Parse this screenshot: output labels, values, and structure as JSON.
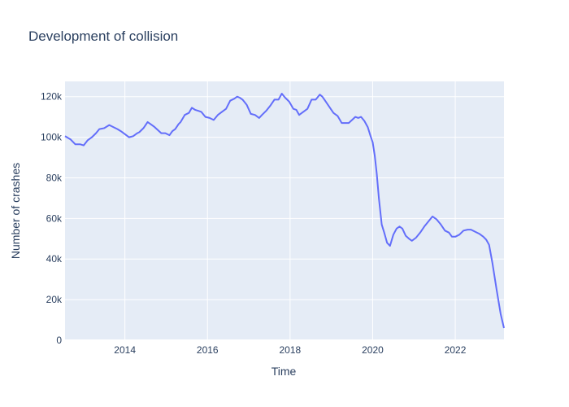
{
  "chart_data": {
    "type": "line",
    "title": "Development of collision",
    "xlabel": "Time",
    "ylabel": "Number of crashes",
    "xlim": [
      2012.55,
      2023.18
    ],
    "ylim": [
      0,
      127500
    ],
    "x_ticks": [
      {
        "value": 2014,
        "label": "2014"
      },
      {
        "value": 2016,
        "label": "2016"
      },
      {
        "value": 2018,
        "label": "2018"
      },
      {
        "value": 2020,
        "label": "2020"
      },
      {
        "value": 2022,
        "label": "2022"
      }
    ],
    "y_ticks": [
      {
        "value": 0,
        "label": "0"
      },
      {
        "value": 20000,
        "label": "20k"
      },
      {
        "value": 40000,
        "label": "40k"
      },
      {
        "value": 60000,
        "label": "60k"
      },
      {
        "value": 80000,
        "label": "80k"
      },
      {
        "value": 100000,
        "label": "100k"
      },
      {
        "value": 120000,
        "label": "120k"
      }
    ],
    "grid": true,
    "line_color": "#636efa",
    "plot_bg": "#e5ecf6",
    "series": [
      {
        "x": [
          2012.55,
          2012.68,
          2012.8,
          2012.92,
          2013.0,
          2013.1,
          2013.2,
          2013.3,
          2013.38,
          2013.5,
          2013.62,
          2013.72,
          2013.82,
          2013.9,
          2014.0,
          2014.1,
          2014.2,
          2014.3,
          2014.35,
          2014.45,
          2014.55,
          2014.62,
          2014.72,
          2014.8,
          2014.88,
          2014.98,
          2015.08,
          2015.15,
          2015.22,
          2015.3,
          2015.35,
          2015.45,
          2015.55,
          2015.62,
          2015.7,
          2015.78,
          2015.85,
          2015.95,
          2016.05,
          2016.15,
          2016.25,
          2016.35,
          2016.45,
          2016.55,
          2016.65,
          2016.72,
          2016.78,
          2016.85,
          2016.95,
          2017.05,
          2017.15,
          2017.25,
          2017.32,
          2017.42,
          2017.52,
          2017.62,
          2017.72,
          2017.8,
          2017.88,
          2017.98,
          2018.08,
          2018.15,
          2018.22,
          2018.32,
          2018.42,
          2018.52,
          2018.62,
          2018.72,
          2018.78,
          2018.85,
          2018.95,
          2019.05,
          2019.15,
          2019.25,
          2019.32,
          2019.42,
          2019.5,
          2019.58,
          2019.65,
          2019.72,
          2019.8,
          2019.88,
          2019.95,
          2020.0,
          2020.05,
          2020.1,
          2020.15,
          2020.22,
          2020.28,
          2020.35,
          2020.42,
          2020.5,
          2020.58,
          2020.65,
          2020.72,
          2020.8,
          2020.88,
          2020.95,
          2021.05,
          2021.15,
          2021.25,
          2021.35,
          2021.45,
          2021.55,
          2021.65,
          2021.75,
          2021.85,
          2021.92,
          2022.0,
          2022.1,
          2022.2,
          2022.3,
          2022.38,
          2022.48,
          2022.58,
          2022.68,
          2022.75,
          2022.82,
          2022.9,
          2023.0,
          2023.1,
          2023.18
        ],
        "y": [
          100500,
          99000,
          96500,
          96500,
          96000,
          98500,
          100000,
          102000,
          104000,
          104500,
          106000,
          105000,
          104000,
          103000,
          101500,
          100000,
          100500,
          102000,
          102500,
          104500,
          107500,
          106500,
          105000,
          103500,
          102000,
          102000,
          101000,
          103000,
          104000,
          106500,
          107500,
          111000,
          112000,
          114500,
          113500,
          113000,
          112500,
          110000,
          109500,
          108500,
          111000,
          112500,
          114000,
          118000,
          119000,
          120000,
          119500,
          118500,
          116000,
          111500,
          111000,
          109500,
          111000,
          113000,
          115500,
          118500,
          118500,
          121500,
          119500,
          117500,
          114000,
          113500,
          111000,
          112500,
          114000,
          118500,
          118500,
          121000,
          120000,
          118000,
          115000,
          112000,
          110500,
          107000,
          107000,
          107000,
          108500,
          110000,
          109500,
          110000,
          108000,
          105000,
          100500,
          97500,
          91000,
          82000,
          70000,
          57000,
          53000,
          48000,
          46500,
          52000,
          55000,
          56000,
          55000,
          51500,
          50000,
          49000,
          50500,
          53000,
          56000,
          58500,
          61000,
          59500,
          57000,
          54000,
          53000,
          51000,
          51000,
          52000,
          54000,
          54500,
          54500,
          53500,
          52500,
          51000,
          49500,
          47000,
          38000,
          25000,
          13000,
          6000
        ]
      }
    ]
  }
}
